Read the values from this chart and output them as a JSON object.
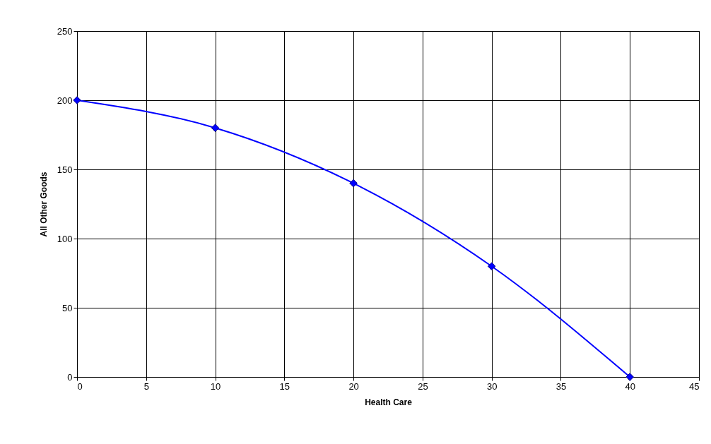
{
  "chart_data": {
    "type": "line",
    "xlabel": "Health Care",
    "ylabel": "All Other Goods",
    "x": [
      0,
      10,
      20,
      30,
      40
    ],
    "series": [
      {
        "color": "#0000ff",
        "values": [
          200,
          180,
          140,
          80,
          0
        ]
      }
    ],
    "xlim": [
      0,
      45
    ],
    "xticks": [
      0,
      5,
      10,
      15,
      20,
      25,
      30,
      35,
      40,
      45
    ],
    "ylim": [
      0,
      250
    ],
    "yticks": [
      0,
      50,
      100,
      150,
      200,
      250
    ],
    "grid": true,
    "marker": "diamond",
    "line_style": "solid"
  }
}
